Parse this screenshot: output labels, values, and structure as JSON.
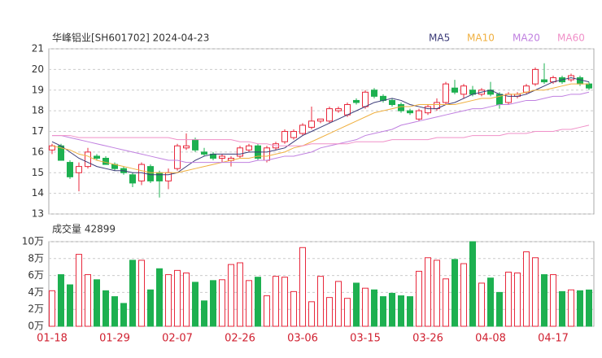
{
  "chart_data": [
    {
      "type": "candlestick",
      "title": "华峰铝业[SH601702] 2024-04-23",
      "open": [
        16.1,
        16.3,
        15.5,
        15.0,
        15.3,
        15.8,
        15.7,
        15.4,
        15.2,
        14.9,
        14.6,
        15.3,
        15.0,
        14.6,
        15.2,
        16.2,
        16.6,
        16.0,
        15.9,
        15.7,
        15.6,
        15.8,
        16.1,
        16.3,
        15.6,
        16.2,
        16.5,
        16.7,
        16.9,
        17.2,
        17.5,
        17.5,
        18.0,
        17.8,
        18.5,
        18.2,
        19.0,
        18.7,
        18.5,
        18.3,
        18.0,
        17.6,
        17.9,
        18.1,
        18.4,
        19.1,
        18.8,
        19.0,
        18.8,
        19.0,
        18.8,
        18.4,
        18.7,
        18.9,
        19.3,
        19.5,
        19.4,
        19.6,
        19.5,
        19.6,
        19.3
      ],
      "high": [
        16.4,
        16.4,
        15.6,
        15.5,
        16.2,
        15.9,
        15.8,
        15.5,
        15.3,
        15.0,
        15.5,
        15.4,
        15.1,
        15.2,
        16.4,
        16.9,
        16.7,
        16.2,
        16.0,
        15.9,
        15.8,
        16.3,
        16.4,
        16.4,
        16.3,
        16.5,
        17.1,
        17.1,
        17.4,
        18.2,
        17.6,
        18.2,
        18.2,
        18.4,
        18.6,
        19.0,
        19.1,
        18.8,
        18.6,
        18.4,
        18.1,
        18.1,
        18.3,
        18.6,
        19.4,
        19.5,
        19.3,
        19.2,
        19.1,
        19.4,
        18.9,
        18.9,
        18.9,
        19.3,
        20.1,
        20.3,
        19.7,
        19.7,
        19.8,
        19.7,
        19.4
      ],
      "low": [
        15.9,
        15.6,
        14.7,
        14.1,
        15.2,
        15.6,
        15.4,
        15.1,
        14.9,
        14.3,
        14.4,
        14.5,
        13.8,
        14.2,
        15.1,
        16.1,
        16.0,
        15.8,
        15.6,
        15.5,
        15.3,
        15.7,
        16.0,
        15.6,
        15.5,
        16.1,
        16.4,
        16.6,
        16.8,
        17.1,
        17.4,
        17.4,
        17.9,
        17.7,
        18.3,
        18.1,
        18.6,
        18.4,
        18.2,
        17.9,
        17.8,
        17.5,
        17.8,
        18.0,
        18.3,
        18.8,
        18.6,
        18.7,
        18.7,
        18.7,
        18.1,
        18.3,
        18.6,
        18.8,
        19.2,
        19.3,
        19.3,
        19.3,
        19.4,
        19.2,
        19.0
      ],
      "close": [
        16.3,
        15.6,
        14.8,
        15.3,
        16.0,
        15.7,
        15.4,
        15.2,
        15.0,
        14.5,
        15.4,
        14.6,
        14.6,
        15.0,
        16.3,
        16.3,
        16.1,
        15.9,
        15.7,
        15.8,
        15.7,
        16.2,
        16.3,
        15.7,
        16.2,
        16.4,
        17.0,
        17.0,
        17.3,
        17.5,
        17.6,
        18.1,
        18.1,
        18.3,
        18.4,
        18.9,
        18.7,
        18.5,
        18.3,
        18.0,
        17.9,
        18.0,
        18.2,
        18.4,
        19.3,
        18.9,
        19.2,
        18.8,
        19.0,
        18.8,
        18.3,
        18.8,
        18.8,
        19.2,
        20.0,
        19.4,
        19.6,
        19.4,
        19.7,
        19.3,
        19.1
      ],
      "up_color": "#e8283c",
      "down_color": "#1db050",
      "series": [
        {
          "name": "MA5",
          "color": "#3b3b78",
          "values": [
            16.5,
            16.3,
            16.0,
            15.7,
            15.5,
            15.3,
            15.2,
            15.1,
            15.1,
            15.0,
            15.0,
            14.9,
            14.9,
            14.9,
            15.0,
            15.3,
            15.6,
            15.8,
            15.9,
            15.9,
            15.9,
            15.9,
            16.0,
            16.0,
            16.0,
            16.1,
            16.2,
            16.5,
            16.8,
            17.0,
            17.2,
            17.4,
            17.6,
            17.8,
            18.0,
            18.2,
            18.4,
            18.5,
            18.6,
            18.5,
            18.3,
            18.2,
            18.1,
            18.1,
            18.3,
            18.4,
            18.6,
            18.8,
            18.9,
            19.0,
            18.8,
            18.7,
            18.7,
            18.8,
            19.0,
            19.2,
            19.4,
            19.5,
            19.6,
            19.5,
            19.4
          ]
        },
        {
          "name": "MA10",
          "color": "#f0b040",
          "values": [
            16.3,
            16.2,
            16.1,
            15.9,
            15.8,
            15.6,
            15.5,
            15.4,
            15.3,
            15.2,
            15.1,
            15.0,
            15.0,
            15.0,
            15.0,
            15.1,
            15.2,
            15.3,
            15.4,
            15.5,
            15.6,
            15.7,
            15.7,
            15.8,
            15.8,
            15.9,
            16.0,
            16.2,
            16.3,
            16.5,
            16.7,
            16.9,
            17.1,
            17.3,
            17.5,
            17.7,
            17.9,
            18.0,
            18.1,
            18.2,
            18.2,
            18.3,
            18.3,
            18.3,
            18.3,
            18.3,
            18.4,
            18.5,
            18.6,
            18.6,
            18.7,
            18.8,
            18.8,
            18.9,
            19.0,
            19.0,
            19.1,
            19.2,
            19.3,
            19.3,
            19.3
          ]
        },
        {
          "name": "MA20",
          "color": "#c080e0",
          "values": [
            16.8,
            16.8,
            16.7,
            16.6,
            16.5,
            16.4,
            16.3,
            16.2,
            16.1,
            16.0,
            15.9,
            15.8,
            15.7,
            15.6,
            15.6,
            15.5,
            15.5,
            15.5,
            15.5,
            15.5,
            15.5,
            15.5,
            15.5,
            15.6,
            15.6,
            15.7,
            15.8,
            15.8,
            15.9,
            16.0,
            16.2,
            16.3,
            16.4,
            16.5,
            16.6,
            16.8,
            16.9,
            17.0,
            17.1,
            17.3,
            17.4,
            17.5,
            17.6,
            17.7,
            17.8,
            17.9,
            18.0,
            18.1,
            18.1,
            18.2,
            18.3,
            18.3,
            18.4,
            18.5,
            18.5,
            18.6,
            18.7,
            18.7,
            18.8,
            18.8,
            18.9
          ]
        },
        {
          "name": "MA60",
          "color": "#f090c8",
          "values": [
            16.8,
            16.8,
            16.8,
            16.7,
            16.7,
            16.7,
            16.7,
            16.7,
            16.7,
            16.7,
            16.7,
            16.7,
            16.7,
            16.7,
            16.6,
            16.6,
            16.6,
            16.6,
            16.6,
            16.6,
            16.6,
            16.5,
            16.5,
            16.4,
            16.4,
            16.3,
            16.3,
            16.3,
            16.3,
            16.4,
            16.4,
            16.4,
            16.4,
            16.4,
            16.5,
            16.5,
            16.5,
            16.5,
            16.6,
            16.6,
            16.6,
            16.6,
            16.6,
            16.7,
            16.7,
            16.7,
            16.7,
            16.8,
            16.8,
            16.8,
            16.8,
            16.9,
            16.9,
            16.9,
            17.0,
            17.0,
            17.0,
            17.1,
            17.1,
            17.2,
            17.3
          ]
        }
      ],
      "ylim": [
        13,
        21
      ],
      "yticks": [
        13,
        14,
        15,
        16,
        17,
        18,
        19,
        20,
        21
      ],
      "grid": true
    },
    {
      "type": "bar",
      "title": "成交量 42899",
      "categories": [
        "01-18",
        null,
        null,
        null,
        null,
        null,
        null,
        "01-29",
        null,
        null,
        null,
        null,
        null,
        null,
        "02-07",
        null,
        null,
        null,
        null,
        null,
        null,
        "02-26",
        null,
        null,
        null,
        null,
        null,
        null,
        "03-06",
        null,
        null,
        null,
        null,
        null,
        null,
        "03-15",
        null,
        null,
        null,
        null,
        null,
        null,
        "03-26",
        null,
        null,
        null,
        null,
        null,
        null,
        "04-08",
        null,
        null,
        null,
        null,
        null,
        null,
        "04-17",
        null,
        null,
        null,
        null
      ],
      "values": [
        4.2,
        6.1,
        4.9,
        8.5,
        6.1,
        5.5,
        4.2,
        3.5,
        2.7,
        7.8,
        7.8,
        4.3,
        6.8,
        6.1,
        6.6,
        6.3,
        5.2,
        3.0,
        5.4,
        5.5,
        7.3,
        7.5,
        5.4,
        5.8,
        3.6,
        5.9,
        5.8,
        4.1,
        9.3,
        2.9,
        5.9,
        3.4,
        5.3,
        3.3,
        5.1,
        4.5,
        4.3,
        3.5,
        3.9,
        3.6,
        3.5,
        6.5,
        8.1,
        7.8,
        5.6,
        7.9,
        7.4,
        10.0,
        5.1,
        5.7,
        4.0,
        6.4,
        6.3,
        8.8,
        8.1,
        6.1,
        6.1,
        4.1,
        4.3,
        4.2,
        4.29
      ],
      "ylim": [
        0,
        10
      ],
      "yticks": [
        {
          "value": 0,
          "label": "0万"
        },
        {
          "value": 2,
          "label": "2万"
        },
        {
          "value": 4,
          "label": "4万"
        },
        {
          "value": 6,
          "label": "6万"
        },
        {
          "value": 8,
          "label": "8万"
        },
        {
          "value": 10,
          "label": "10万"
        }
      ],
      "grid": true
    }
  ]
}
